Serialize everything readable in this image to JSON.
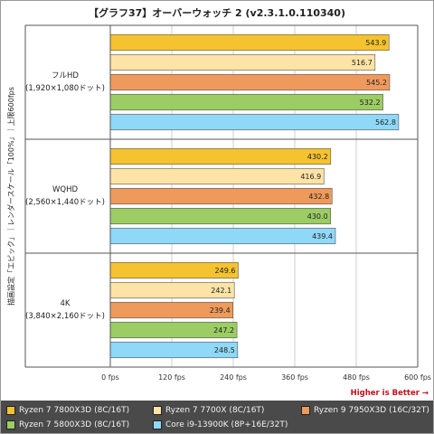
{
  "chart_data": {
    "type": "bar",
    "orientation": "horizontal",
    "title": "【グラフ37】オーバーウォッチ 2 (v2.3.1.0.110340)",
    "ylabel": "描画設定「エピック」｜レンダースケール「100%」｜上限600fps",
    "xlim": [
      0,
      600
    ],
    "xticks": [
      "0 fps",
      "120 fps",
      "240 fps",
      "360 fps",
      "480 fps",
      "600 fps"
    ],
    "annotation": "Higher is Better →",
    "grid": true,
    "legend_position": "bottom",
    "groups": [
      {
        "name": "フルHD",
        "sub": "(1,920×1,080ドット)"
      },
      {
        "name": "WQHD",
        "sub": "(2,560×1,440ドット)"
      },
      {
        "name": "4K",
        "sub": "(3,840×2,160ドット)"
      }
    ],
    "series": [
      {
        "name": "Ryzen 7 7800X3D (8C/16T)",
        "color": "#f5c230",
        "values": [
          543.9,
          430.2,
          249.6
        ]
      },
      {
        "name": "Ryzen 7 7700X (8C/16T)",
        "color": "#fde3a6",
        "values": [
          516.7,
          416.9,
          242.1
        ]
      },
      {
        "name": "Ryzen 9 7950X3D (16C/32T)",
        "color": "#ee9a5c",
        "values": [
          545.2,
          432.8,
          239.4
        ]
      },
      {
        "name": "Ryzen 7 5800X3D (8C/16T)",
        "color": "#9ccc64",
        "values": [
          532.2,
          430.0,
          247.2
        ]
      },
      {
        "name": "Core i9-13900K (8P+16E/32T)",
        "color": "#8fd8f7",
        "values": [
          562.8,
          439.4,
          248.5
        ]
      }
    ]
  }
}
